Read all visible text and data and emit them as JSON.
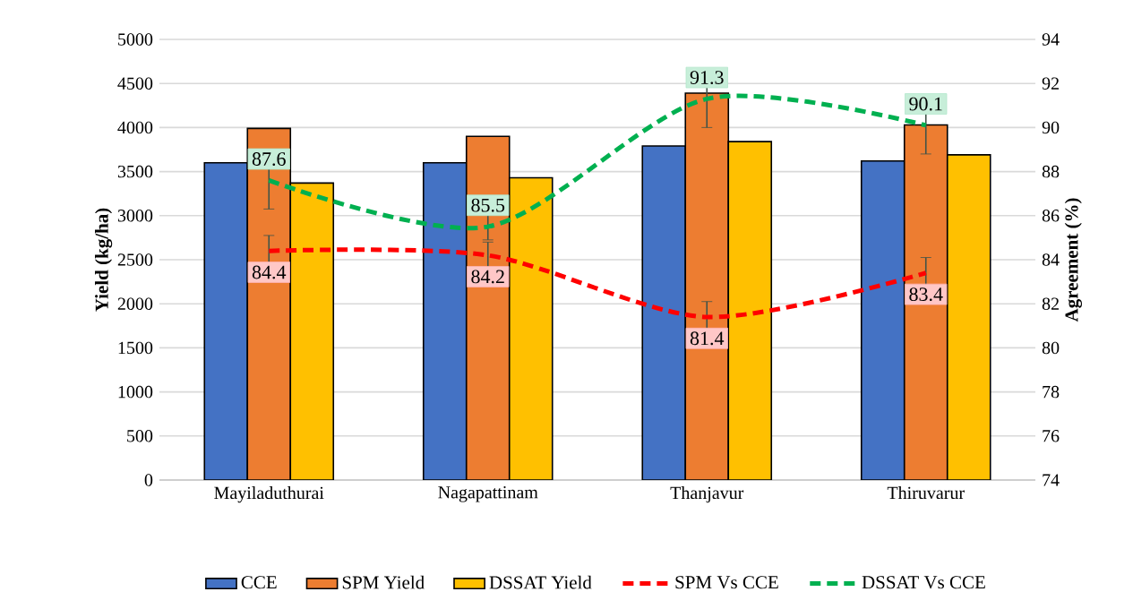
{
  "chart_data": {
    "type": "bar",
    "ylabel": "Yield (kg/ha)",
    "y2label": "Agreement (%)",
    "categories": [
      "Mayiladuthurai",
      "Nagapattinam",
      "Thanjavur",
      "Thiruvarur"
    ],
    "series": [
      {
        "name": "CCE",
        "color": "#4472c4",
        "values": [
          3600,
          3600,
          3790,
          3620
        ]
      },
      {
        "name": "SPM Yield",
        "color": "#ed7d31",
        "values": [
          3990,
          3900,
          4390,
          4030
        ]
      },
      {
        "name": "DSSAT Yield",
        "color": "#ffc000",
        "values": [
          3370,
          3430,
          3840,
          3690
        ]
      },
      {
        "name": "SPM Vs CCE",
        "type": "line",
        "axis": "y2",
        "color": "#ff0000",
        "line_style": "dashed",
        "values": [
          84.4,
          84.2,
          81.4,
          83.4
        ],
        "errors": [
          0.7,
          0.6,
          0.7,
          0.7
        ],
        "value_labels": [
          "84.4",
          "84.2",
          "81.4",
          "83.4"
        ]
      },
      {
        "name": "DSSAT Vs CCE",
        "type": "line",
        "axis": "y2",
        "color": "#00b050",
        "line_style": "dashed",
        "values": [
          87.6,
          85.5,
          91.3,
          90.1
        ],
        "errors": [
          1.3,
          0.6,
          1.3,
          1.3
        ],
        "value_labels": [
          "87.6",
          "85.5",
          "91.3",
          "90.1"
        ]
      }
    ],
    "ylim": [
      0,
      5000
    ],
    "yticks": [
      0,
      500,
      1000,
      1500,
      2000,
      2500,
      3000,
      3500,
      4000,
      4500,
      5000
    ],
    "y2lim": [
      74,
      94
    ],
    "y2ticks": [
      74,
      76,
      78,
      80,
      82,
      84,
      86,
      88,
      90,
      92,
      94
    ],
    "grid": "y",
    "legend": "bottom"
  }
}
